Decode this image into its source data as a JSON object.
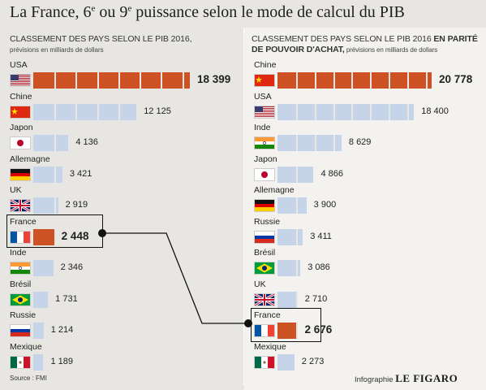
{
  "title_prefix": "La France, 6",
  "title_sup1": "e",
  "title_mid": " ou 9",
  "title_sup2": "e",
  "title_suffix": " puissance selon le mode de calcul du PIB",
  "left_header": {
    "main": "CLASSEMENT DES PAYS SELON LE PIB 2016,",
    "sub": "prévisions en milliards de dollars"
  },
  "right_header": {
    "main": "CLASSEMENT DES PAYS SELON LE PIB 2016 ",
    "bold1": "EN PARITÉ",
    "bold2": "DE POUVOIR D'ACHAT,",
    "sub": " prévisions en milliards de dollars"
  },
  "source": "Source : FMI",
  "credit_prefix": "Infographie ",
  "credit_brand": "LE FIGARO",
  "colors": {
    "blue": "#c5d4e8",
    "orange": "#cd5223",
    "background": "#e7e6e2"
  },
  "chart_data": [
    {
      "type": "bar",
      "orientation": "horizontal",
      "categories": [
        "USA",
        "Chine",
        "Japon",
        "Allemagne",
        "UK",
        "France",
        "Inde",
        "Brésil",
        "Russie",
        "Mexique"
      ],
      "values": [
        18399,
        12125,
        4136,
        3421,
        2919,
        2448,
        2346,
        1731,
        1214,
        1189
      ],
      "value_labels": [
        "18 399",
        "12 125",
        "4 136",
        "3 421",
        "2 919",
        "2 448",
        "2 346",
        "1 731",
        "1 214",
        "1 189"
      ],
      "highlight": [
        "USA",
        "France"
      ],
      "unit": "milliards de dollars"
    },
    {
      "type": "bar",
      "orientation": "horizontal",
      "categories": [
        "Chine",
        "USA",
        "Inde",
        "Japon",
        "Allemagne",
        "Russie",
        "Brésil",
        "UK",
        "France",
        "Mexique"
      ],
      "values": [
        20778,
        18400,
        8629,
        4866,
        3900,
        3411,
        3086,
        2710,
        2676,
        2273
      ],
      "value_labels": [
        "20 778",
        "18 400",
        "8 629",
        "4 866",
        "3 900",
        "3 411",
        "3 086",
        "2 710",
        "2 676",
        "2 273"
      ],
      "highlight": [
        "Chine",
        "France"
      ],
      "unit": "milliards de dollars"
    }
  ]
}
